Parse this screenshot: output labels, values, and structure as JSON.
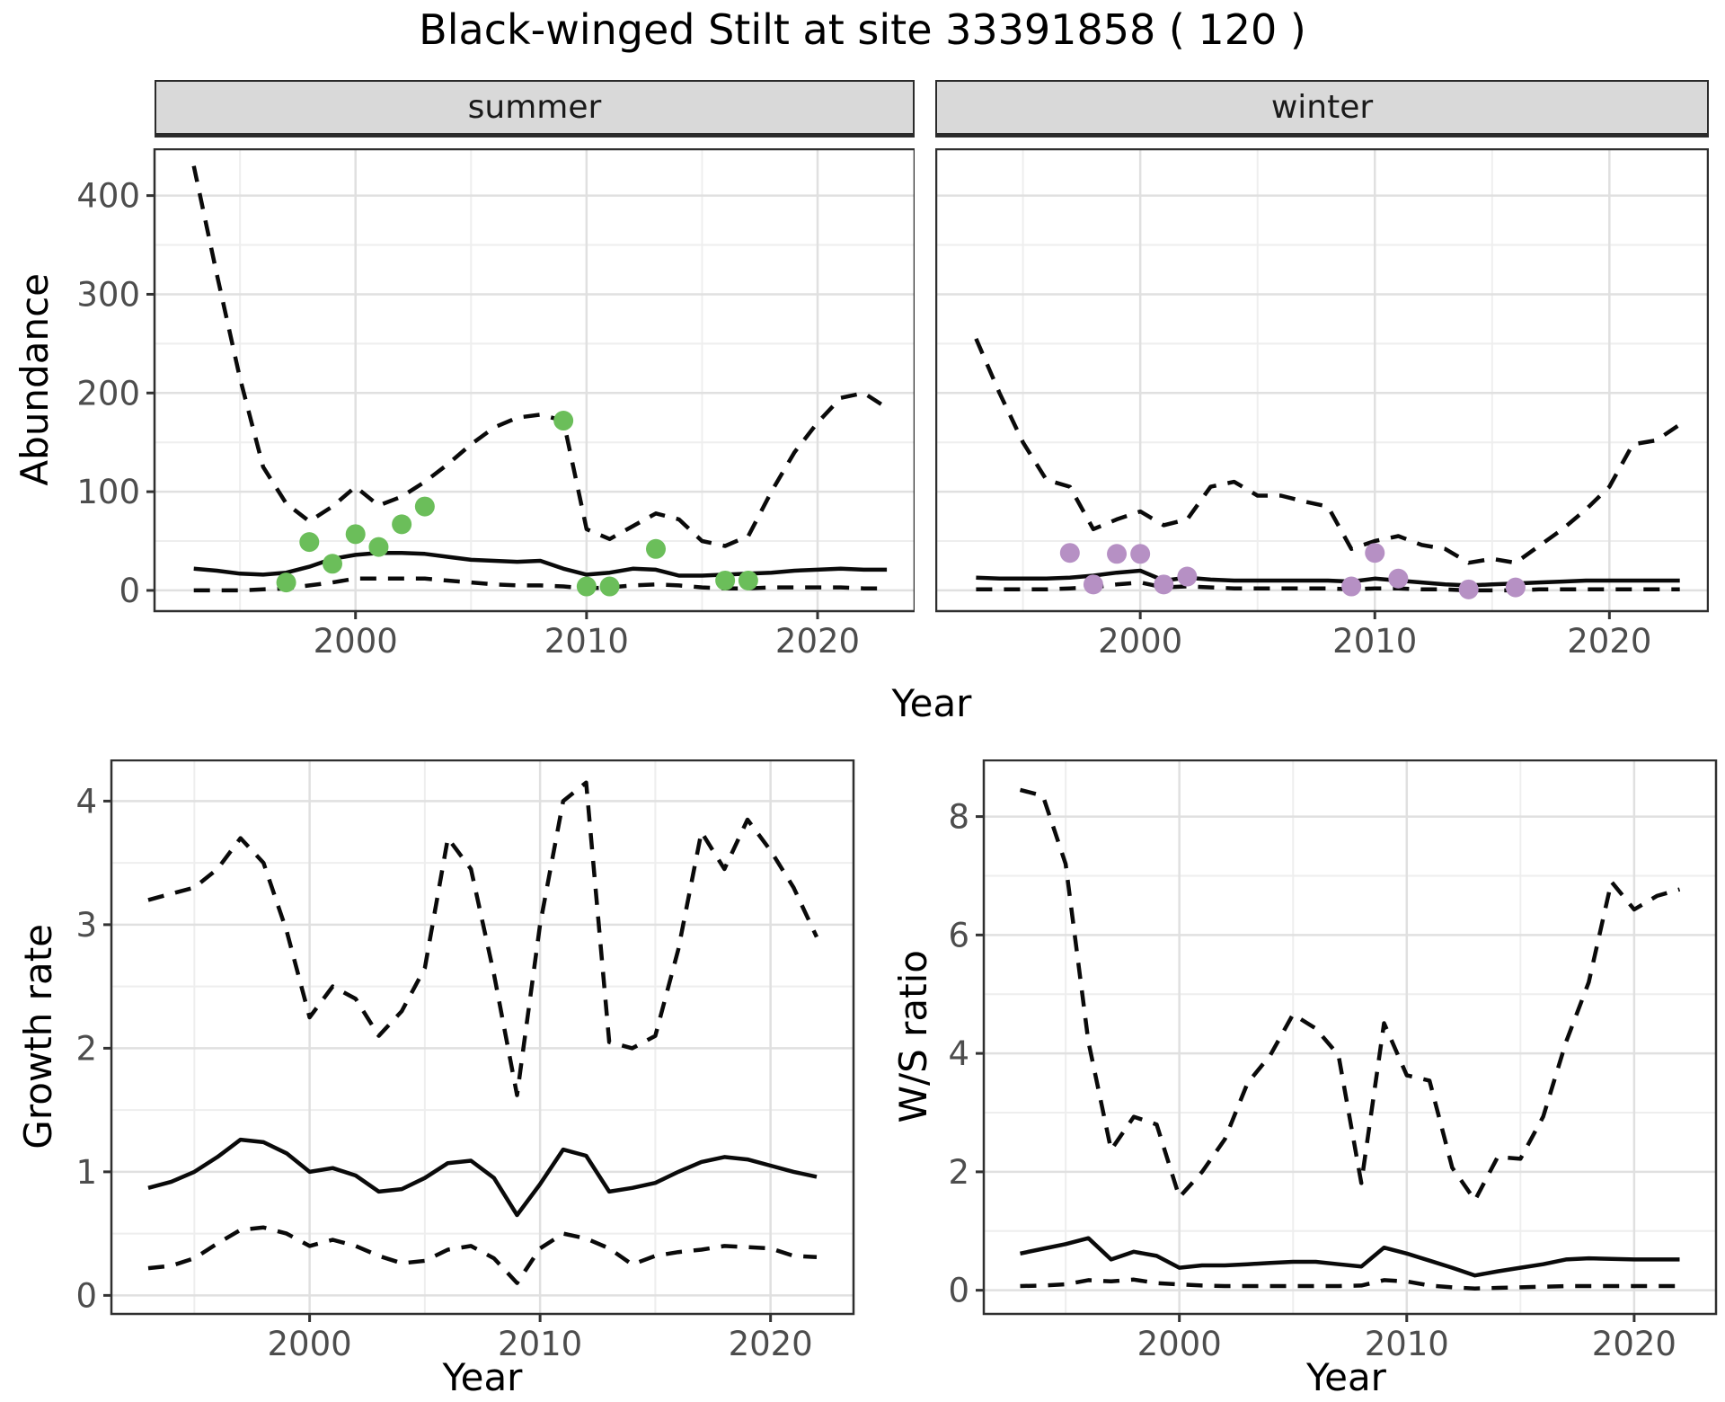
{
  "title": "Black-winged Stilt at site 33391858 ( 120 )",
  "axis_labels": {
    "x": "Year",
    "abundance": "Abundance",
    "growth": "Growth rate",
    "ws": "W/S ratio"
  },
  "facets": {
    "summer": "summer",
    "winter": "winter"
  },
  "colors": {
    "summer_point": "#6BBE5A",
    "winter_point": "#B690C4",
    "line": "#0a0a0a",
    "grid_major": "#E0E0E0",
    "grid_minor": "#EEEEEE",
    "panel_border": "#2f2f2f",
    "strip_bg": "#D9D9D9",
    "tick_text": "#4d4d4d",
    "tick_mark": "#333333"
  },
  "chart_data": [
    {
      "id": "summer-abundance",
      "type": "line",
      "facet": "summer",
      "xlabel": "Year",
      "ylabel": "Abundance",
      "xlim": [
        1991.3,
        2024.2
      ],
      "ylim": [
        -21,
        447
      ],
      "xticks": [
        2000,
        2010,
        2020
      ],
      "xminor": [
        1995,
        2005,
        2015
      ],
      "yticks": [
        0,
        100,
        200,
        300,
        400
      ],
      "yminor": [
        50,
        150,
        250,
        350
      ],
      "grid": true,
      "legend": false,
      "x": [
        1993,
        1994,
        1995,
        1996,
        1997,
        1998,
        1999,
        2000,
        2001,
        2002,
        2003,
        2004,
        2005,
        2006,
        2007,
        2008,
        2009,
        2010,
        2011,
        2012,
        2013,
        2014,
        2015,
        2016,
        2017,
        2018,
        2019,
        2020,
        2021,
        2022,
        2023
      ],
      "series": [
        {
          "name": "mean",
          "style": "solid",
          "values": [
            22,
            20,
            17,
            16,
            18,
            24,
            32,
            36,
            38,
            38,
            37,
            34,
            31,
            30,
            29,
            30,
            22,
            16,
            18,
            22,
            21,
            15,
            15,
            16,
            17,
            18,
            20,
            21,
            22,
            21,
            21
          ]
        },
        {
          "name": "upper_95ci",
          "style": "dashed",
          "values": [
            430,
            320,
            215,
            125,
            88,
            70,
            85,
            105,
            86,
            95,
            110,
            128,
            148,
            165,
            175,
            178,
            172,
            62,
            52,
            65,
            78,
            72,
            50,
            45,
            55,
            100,
            140,
            170,
            195,
            200,
            185
          ]
        },
        {
          "name": "lower_95ci",
          "style": "dashed",
          "values": [
            0,
            0,
            0,
            1,
            2,
            5,
            8,
            12,
            12,
            12,
            12,
            10,
            8,
            6,
            5,
            5,
            4,
            2,
            3,
            5,
            6,
            5,
            3,
            2,
            2,
            3,
            3,
            3,
            3,
            2,
            2
          ]
        }
      ],
      "observed_points": {
        "color": "summer_point",
        "data": [
          [
            1997,
            8
          ],
          [
            1998,
            49
          ],
          [
            1999,
            27
          ],
          [
            2000,
            57
          ],
          [
            2001,
            44
          ],
          [
            2002,
            67
          ],
          [
            2003,
            85
          ],
          [
            2009,
            172
          ],
          [
            2010,
            4
          ],
          [
            2011,
            4
          ],
          [
            2013,
            42
          ],
          [
            2016,
            10
          ],
          [
            2017,
            10
          ]
        ]
      }
    },
    {
      "id": "winter-abundance",
      "type": "line",
      "facet": "winter",
      "xlabel": "Year",
      "ylabel": "Abundance",
      "xlim": [
        1991.3,
        2024.2
      ],
      "ylim": [
        -21,
        447
      ],
      "xticks": [
        2000,
        2010,
        2020
      ],
      "xminor": [
        1995,
        2005,
        2015
      ],
      "yticks": [
        0,
        100,
        200,
        300,
        400
      ],
      "yminor": [
        50,
        150,
        250,
        350
      ],
      "grid": true,
      "legend": false,
      "x": [
        1993,
        1994,
        1995,
        1996,
        1997,
        1998,
        1999,
        2000,
        2001,
        2002,
        2003,
        2004,
        2005,
        2006,
        2007,
        2008,
        2009,
        2010,
        2011,
        2012,
        2013,
        2014,
        2015,
        2016,
        2017,
        2018,
        2019,
        2020,
        2021,
        2022,
        2023
      ],
      "series": [
        {
          "name": "mean",
          "style": "solid",
          "values": [
            13,
            12,
            12,
            12,
            13,
            15,
            18,
            20,
            10,
            13,
            11,
            10,
            10,
            10,
            10,
            10,
            9,
            12,
            10,
            8,
            6,
            5,
            6,
            7,
            8,
            9,
            10,
            10,
            10,
            10,
            10
          ]
        },
        {
          "name": "upper_95ci",
          "style": "dashed",
          "values": [
            255,
            200,
            150,
            112,
            105,
            62,
            72,
            80,
            66,
            72,
            105,
            110,
            96,
            96,
            90,
            85,
            42,
            50,
            55,
            46,
            42,
            28,
            32,
            28,
            45,
            62,
            82,
            105,
            148,
            152,
            168
          ]
        },
        {
          "name": "lower_95ci",
          "style": "dashed",
          "values": [
            1,
            1,
            1,
            1,
            2,
            3,
            6,
            8,
            3,
            4,
            3,
            2,
            2,
            2,
            2,
            2,
            1,
            2,
            2,
            1,
            1,
            0,
            0,
            0,
            1,
            1,
            1,
            1,
            1,
            1,
            1
          ]
        }
      ],
      "observed_points": {
        "color": "winter_point",
        "data": [
          [
            1997,
            38
          ],
          [
            1998,
            6
          ],
          [
            1999,
            37
          ],
          [
            2000,
            37
          ],
          [
            2001,
            6
          ],
          [
            2002,
            14
          ],
          [
            2009,
            4
          ],
          [
            2010,
            38
          ],
          [
            2011,
            12
          ],
          [
            2014,
            1
          ],
          [
            2016,
            3
          ]
        ]
      }
    },
    {
      "id": "growth-rate",
      "type": "line",
      "facet": null,
      "xlabel": "Year",
      "ylabel": "Growth rate",
      "xlim": [
        1991.4,
        2023.6
      ],
      "ylim": [
        -0.15,
        4.33
      ],
      "xticks": [
        2000,
        2010,
        2020
      ],
      "xminor": [
        1995,
        2005,
        2015
      ],
      "yticks": [
        0,
        1,
        2,
        3,
        4
      ],
      "yminor": [
        0.5,
        1.5,
        2.5,
        3.5
      ],
      "grid": true,
      "legend": false,
      "x": [
        1993,
        1994,
        1995,
        1996,
        1997,
        1998,
        1999,
        2000,
        2001,
        2002,
        2003,
        2004,
        2005,
        2006,
        2007,
        2008,
        2009,
        2010,
        2011,
        2012,
        2013,
        2014,
        2015,
        2016,
        2017,
        2018,
        2019,
        2020,
        2021,
        2022
      ],
      "series": [
        {
          "name": "mean",
          "style": "solid",
          "values": [
            0.87,
            0.92,
            1.0,
            1.12,
            1.26,
            1.24,
            1.15,
            1.0,
            1.03,
            0.97,
            0.84,
            0.86,
            0.95,
            1.07,
            1.09,
            0.95,
            0.65,
            0.9,
            1.18,
            1.13,
            0.84,
            0.87,
            0.91,
            1.0,
            1.08,
            1.12,
            1.1,
            1.05,
            1.0,
            0.96
          ]
        },
        {
          "name": "upper_95ci",
          "style": "dashed",
          "values": [
            3.2,
            3.25,
            3.3,
            3.45,
            3.7,
            3.5,
            2.95,
            2.25,
            2.5,
            2.4,
            2.1,
            2.3,
            2.65,
            3.7,
            3.45,
            2.6,
            1.62,
            3.0,
            4.0,
            4.15,
            2.05,
            2.0,
            2.1,
            2.8,
            3.75,
            3.45,
            3.85,
            3.6,
            3.3,
            2.9
          ]
        },
        {
          "name": "lower_95ci",
          "style": "dashed",
          "values": [
            0.22,
            0.24,
            0.3,
            0.42,
            0.53,
            0.55,
            0.5,
            0.4,
            0.45,
            0.4,
            0.32,
            0.26,
            0.28,
            0.37,
            0.4,
            0.3,
            0.1,
            0.38,
            0.5,
            0.46,
            0.38,
            0.25,
            0.32,
            0.35,
            0.37,
            0.4,
            0.39,
            0.38,
            0.32,
            0.31
          ]
        }
      ],
      "observed_points": null
    },
    {
      "id": "ws-ratio",
      "type": "line",
      "facet": null,
      "xlabel": "Year",
      "ylabel": "W/S ratio",
      "xlim": [
        1991.4,
        2023.6
      ],
      "ylim": [
        -0.4,
        8.95
      ],
      "xticks": [
        2000,
        2010,
        2020
      ],
      "xminor": [
        1995,
        2005,
        2015
      ],
      "yticks": [
        0,
        2,
        4,
        6,
        8
      ],
      "yminor": [
        1,
        3,
        5,
        7
      ],
      "grid": true,
      "legend": false,
      "x": [
        1993,
        1994,
        1995,
        1996,
        1997,
        1998,
        1999,
        2000,
        2001,
        2002,
        2003,
        2004,
        2005,
        2006,
        2007,
        2008,
        2009,
        2010,
        2011,
        2012,
        2013,
        2014,
        2015,
        2016,
        2017,
        2018,
        2019,
        2020,
        2021,
        2022
      ],
      "series": [
        {
          "name": "mean",
          "style": "solid",
          "values": [
            0.62,
            0.7,
            0.78,
            0.88,
            0.52,
            0.65,
            0.58,
            0.38,
            0.42,
            0.42,
            0.44,
            0.46,
            0.48,
            0.48,
            0.44,
            0.4,
            0.72,
            0.62,
            0.5,
            0.38,
            0.25,
            0.32,
            0.38,
            0.44,
            0.52,
            0.54,
            0.53,
            0.52,
            0.52,
            0.52
          ]
        },
        {
          "name": "upper_95ci",
          "style": "dashed",
          "values": [
            8.45,
            8.35,
            7.2,
            4.2,
            2.37,
            2.93,
            2.8,
            1.57,
            2.0,
            2.55,
            3.5,
            3.97,
            4.66,
            4.42,
            3.97,
            1.81,
            4.51,
            3.63,
            3.54,
            2.07,
            1.52,
            2.25,
            2.22,
            2.93,
            4.19,
            5.2,
            6.9,
            6.43,
            6.66,
            6.77
          ]
        },
        {
          "name": "lower_95ci",
          "style": "dashed",
          "values": [
            0.07,
            0.08,
            0.1,
            0.17,
            0.15,
            0.18,
            0.12,
            0.1,
            0.08,
            0.07,
            0.07,
            0.07,
            0.07,
            0.07,
            0.07,
            0.08,
            0.17,
            0.15,
            0.08,
            0.05,
            0.03,
            0.04,
            0.05,
            0.06,
            0.07,
            0.07,
            0.07,
            0.07,
            0.07,
            0.07
          ]
        }
      ],
      "observed_points": null
    }
  ]
}
